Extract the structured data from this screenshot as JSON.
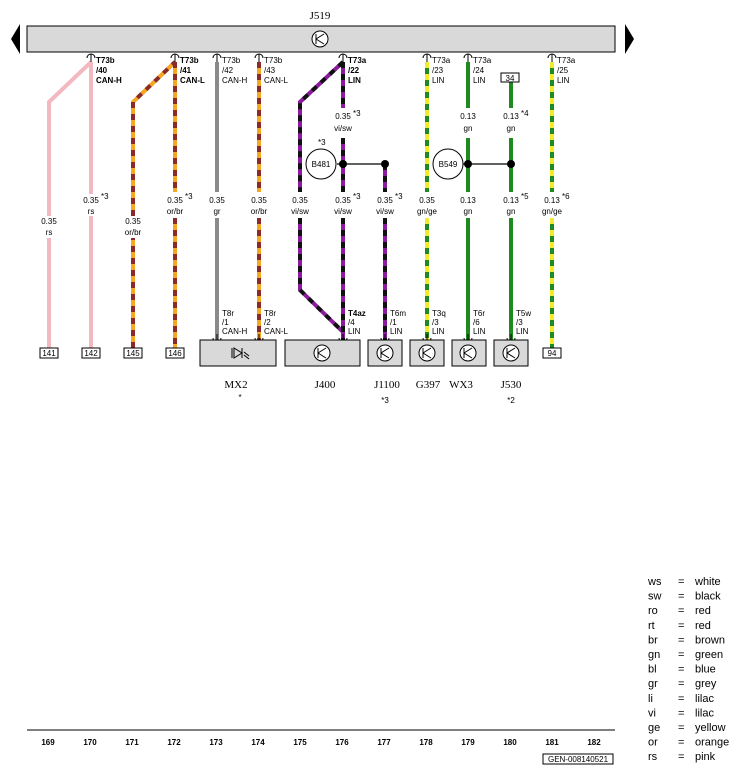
{
  "control_unit": {
    "label": "J519"
  },
  "wires": [
    {
      "id": "w169",
      "code": "",
      "sub": "",
      "signal": "",
      "size": "0.35",
      "color": "rs",
      "note": "",
      "bottom_box": "141",
      "bottom_code": "",
      "bottom_sub": "",
      "bottom_signal": ""
    },
    {
      "id": "w170",
      "code": "T73b",
      "sub": "/40",
      "signal": "CAN-H",
      "size": "0.35",
      "color": "rs",
      "note": "*3",
      "bottom_box": "142"
    },
    {
      "id": "w171",
      "size": "0.35",
      "color": "or/br",
      "note": "",
      "bottom_box": "145"
    },
    {
      "id": "w172",
      "code": "T73b",
      "sub": "/41",
      "signal": "CAN-L",
      "size": "0.35",
      "color": "or/br",
      "note": "*3",
      "bottom_box": "146"
    },
    {
      "id": "w173",
      "code": "T73b",
      "sub": "/42",
      "signal": "CAN-H",
      "size": "0.35",
      "color": "gr",
      "bottom_code": "T8r",
      "bottom_sub": "/1",
      "bottom_signal": "CAN-H"
    },
    {
      "id": "w174",
      "code": "T73b",
      "sub": "/43",
      "signal": "CAN-L",
      "size": "0.35",
      "color": "or/br",
      "bottom_code": "T8r",
      "bottom_sub": "/2",
      "bottom_signal": "CAN-L"
    },
    {
      "id": "w175",
      "size": "0.35",
      "color": "vi/sw"
    },
    {
      "id": "w176",
      "code": "T73a",
      "sub": "/22",
      "signal": "LIN",
      "size": "0.35",
      "color": "vi/sw",
      "note": "*3",
      "size_top": "0.35",
      "color_top": "vi/sw",
      "note_top": "*3",
      "bottom_code": "T4az",
      "bottom_sub": "/4",
      "bottom_signal": "LIN"
    },
    {
      "id": "w177",
      "size": "0.35",
      "color": "vi/sw",
      "note": "*3",
      "bottom_code": "T6m",
      "bottom_sub": "/1",
      "bottom_signal": "LIN"
    },
    {
      "id": "w178",
      "code": "T73a",
      "sub": "/23",
      "signal": "LIN",
      "size": "0.35",
      "color": "gn/ge",
      "bottom_code": "T3q",
      "bottom_sub": "/3",
      "bottom_signal": "LIN"
    },
    {
      "id": "w179",
      "code": "T73a",
      "sub": "/24",
      "signal": "LIN",
      "size": "0.13",
      "color": "gn",
      "size_top": "0.13",
      "color_top": "gn",
      "bottom_code": "T6r",
      "bottom_sub": "/6",
      "bottom_signal": "LIN"
    },
    {
      "id": "w180",
      "top_box": "34",
      "size": "0.13",
      "color": "gn",
      "note": "*5",
      "size_top": "0.13",
      "color_top": "gn",
      "note_top": "*4",
      "bottom_code": "T5w",
      "bottom_sub": "/3",
      "bottom_signal": "LIN"
    },
    {
      "id": "w181",
      "code": "T73a",
      "sub": "/25",
      "signal": "LIN",
      "size": "0.13",
      "color": "gn/ge",
      "note": "*6",
      "bottom_box": "94"
    }
  ],
  "splices": [
    {
      "label": "B481",
      "note": "*3"
    },
    {
      "label": "B549",
      "note": ""
    }
  ],
  "components": [
    {
      "id": "MX2",
      "label": "MX2",
      "note": "*"
    },
    {
      "id": "J400",
      "label": "J400",
      "note": ""
    },
    {
      "id": "J1100",
      "label": "J1100",
      "note": "*3"
    },
    {
      "id": "G397",
      "label": "G397",
      "note": ""
    },
    {
      "id": "WX3",
      "label": "WX3",
      "note": ""
    },
    {
      "id": "J530",
      "label": "J530",
      "note": "*2"
    }
  ],
  "footer": {
    "numbers": [
      "169",
      "170",
      "171",
      "172",
      "173",
      "174",
      "175",
      "176",
      "177",
      "178",
      "179",
      "180",
      "181",
      "182"
    ],
    "code": "GEN-008140521"
  },
  "legend": [
    {
      "abbr": "ws",
      "eq": "=",
      "name": "white"
    },
    {
      "abbr": "sw",
      "eq": "=",
      "name": "black"
    },
    {
      "abbr": "ro",
      "eq": "=",
      "name": "red"
    },
    {
      "abbr": "rt",
      "eq": "=",
      "name": "red"
    },
    {
      "abbr": "br",
      "eq": "=",
      "name": "brown"
    },
    {
      "abbr": "gn",
      "eq": "=",
      "name": "green"
    },
    {
      "abbr": "bl",
      "eq": "=",
      "name": "blue"
    },
    {
      "abbr": "gr",
      "eq": "=",
      "name": "grey"
    },
    {
      "abbr": "li",
      "eq": "=",
      "name": "lilac"
    },
    {
      "abbr": "vi",
      "eq": "=",
      "name": "lilac"
    },
    {
      "abbr": "ge",
      "eq": "=",
      "name": "yellow"
    },
    {
      "abbr": "or",
      "eq": "=",
      "name": "orange"
    },
    {
      "abbr": "rs",
      "eq": "=",
      "name": "pink"
    }
  ],
  "colors": {
    "pink": "#f4b9c0",
    "orange": "#f5a623",
    "brown": "#8a2b2b",
    "grey": "#8a8a8a",
    "violet": "#8b1a9e",
    "black": "#111111",
    "green": "#1f8a1f",
    "yellow": "#f2ea2e",
    "bar": "#d9d9d9"
  }
}
